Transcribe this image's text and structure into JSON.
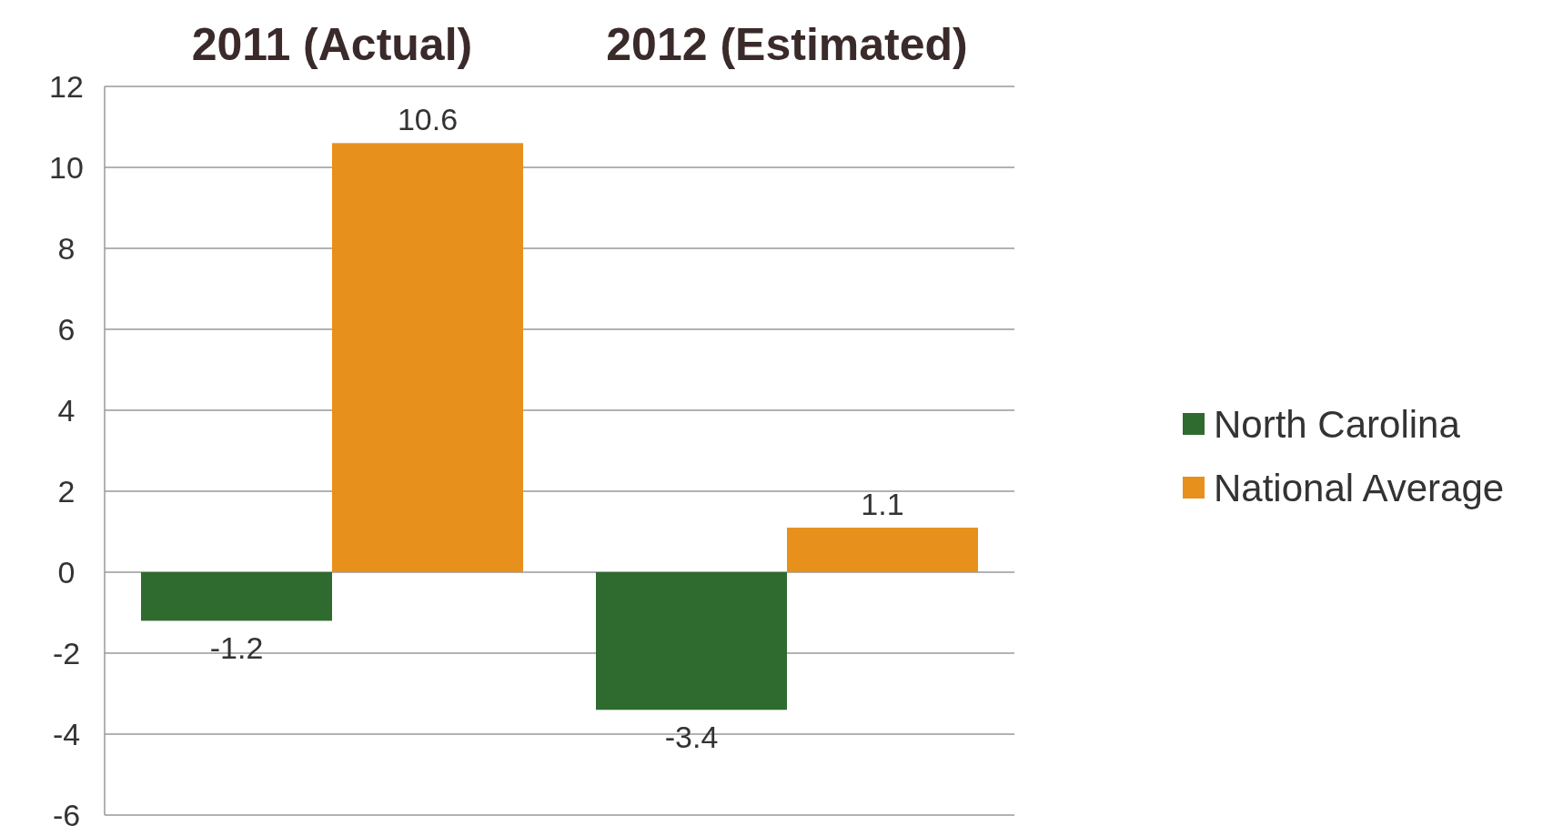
{
  "chart_data": {
    "type": "bar",
    "categories": [
      "2011 (Actual)",
      "2012 (Estimated)"
    ],
    "series": [
      {
        "name": "North Carolina",
        "color": "#2f6b2f",
        "values": [
          -1.2,
          -3.4
        ]
      },
      {
        "name": "National Average",
        "color": "#e8901c",
        "values": [
          10.6,
          1.1
        ]
      }
    ],
    "ylim": [
      -6,
      12
    ],
    "yticks": [
      -6,
      -4,
      -2,
      0,
      2,
      4,
      6,
      8,
      10,
      12
    ],
    "grid": "y",
    "legend": "right",
    "data_labels": true
  }
}
